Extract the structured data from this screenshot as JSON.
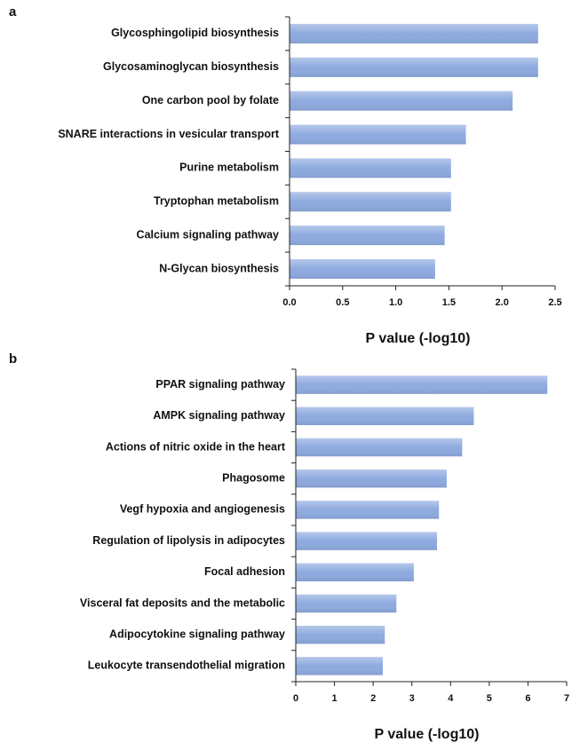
{
  "chart_data": [
    {
      "type": "bar",
      "label": "a",
      "orientation": "horizontal",
      "categories": [
        "Glycosphingolipid biosynthesis",
        "Glycosaminoglycan biosynthesis",
        "One carbon pool by folate",
        "SNARE interactions in vesicular transport",
        "Purine metabolism",
        "Tryptophan metabolism",
        "Calcium signaling pathway",
        "N-Glycan biosynthesis"
      ],
      "values": [
        2.34,
        2.34,
        2.1,
        1.66,
        1.52,
        1.52,
        1.46,
        1.37
      ],
      "color": "#8eaadf",
      "xlim": [
        0,
        2.5
      ],
      "xticks": [
        {
          "value": 0,
          "label": "0.0"
        },
        0.5,
        {
          "value": 1,
          "label": "1.0"
        },
        1.5,
        {
          "value": 2,
          "label": "2.0"
        },
        2.5
      ],
      "xlabel": "P value (-log10)"
    },
    {
      "type": "bar",
      "label": "b",
      "orientation": "horizontal",
      "categories": [
        "PPAR signaling pathway",
        "AMPK signaling pathway",
        "Actions of nitric oxide in the heart",
        "Phagosome",
        "Vegf hypoxia and angiogenesis",
        "Regulation of lipolysis in adipocytes",
        "Focal adhesion",
        "Visceral fat deposits and the metabolic",
        "Adipocytokine signaling pathway",
        "Leukocyte transendothelial migration"
      ],
      "values": [
        6.5,
        4.6,
        4.3,
        3.9,
        3.7,
        3.65,
        3.05,
        2.6,
        2.3,
        2.25
      ],
      "color": "#8eaadf",
      "xlim": [
        0,
        7
      ],
      "xticks": [
        0,
        1,
        2,
        3,
        4,
        5,
        6,
        7
      ],
      "xlabel": "P value (-log10)"
    }
  ]
}
